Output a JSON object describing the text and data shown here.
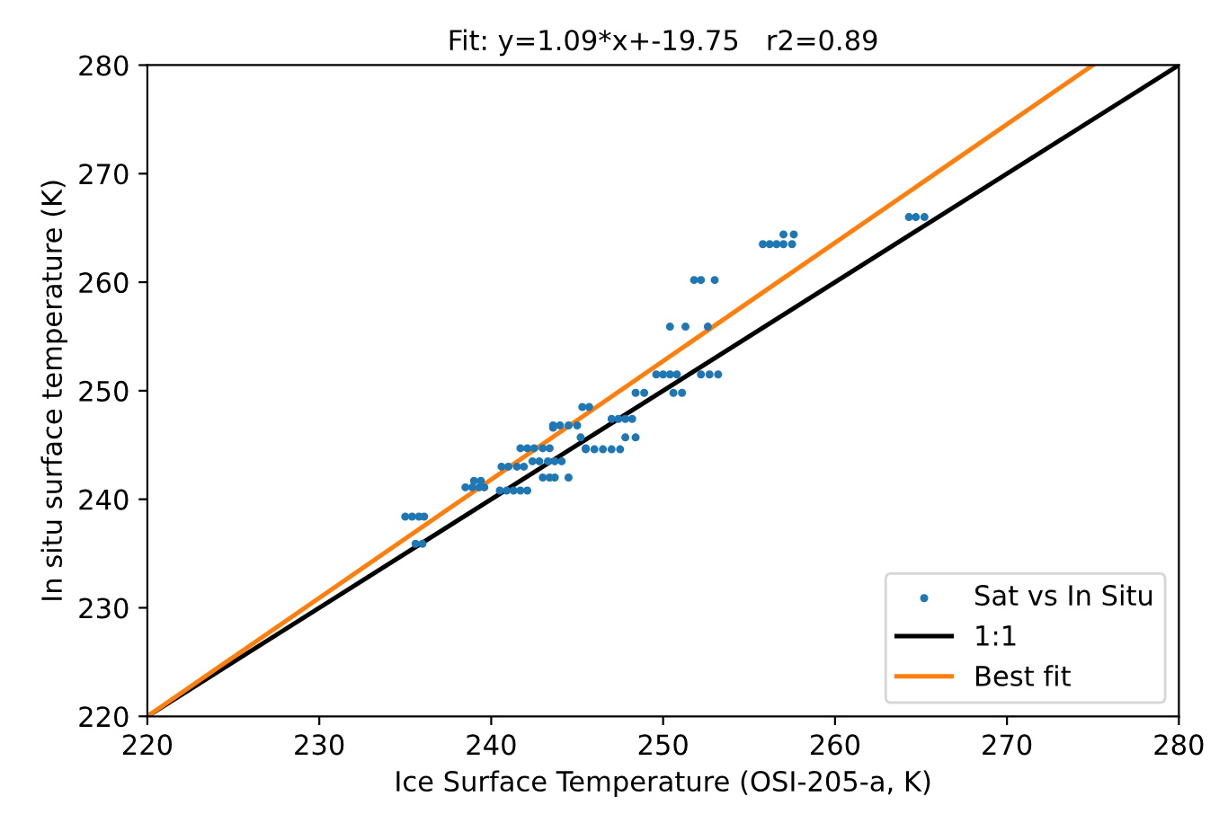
{
  "chart_data": {
    "type": "scatter",
    "title": "Fit: y=1.09*x+-19.75   r2=0.89",
    "xlabel": "Ice Surface Temperature (OSI-205-a, K)",
    "ylabel": "In situ surface temperature (K)",
    "xlim": [
      220,
      280
    ],
    "ylim": [
      220,
      280
    ],
    "xticks": [
      220,
      230,
      240,
      250,
      260,
      270,
      280
    ],
    "yticks": [
      220,
      230,
      240,
      250,
      260,
      270,
      280
    ],
    "grid": false,
    "legend": "bottom right",
    "series": [
      {
        "name": "Sat vs In Situ",
        "color": "#1f77b4",
        "marker": "circle",
        "x": [
          235.0,
          235.4,
          235.8,
          236.1,
          235.6,
          236.0,
          238.5,
          238.9,
          239.3,
          239.6,
          239.0,
          239.4,
          240.5,
          240.9,
          241.3,
          241.7,
          242.1,
          240.6,
          241.0,
          241.5,
          241.9,
          241.7,
          242.1,
          242.5,
          243.0,
          243.4,
          242.4,
          242.8,
          243.3,
          243.7,
          244.1,
          243.0,
          243.4,
          243.7,
          244.5,
          245.5,
          243.6,
          243.6,
          244.0,
          244.5,
          245.0,
          245.3,
          245.7,
          247.0,
          247.4,
          247.8,
          248.2,
          247.8,
          248.4,
          245.2,
          245.5,
          246.0,
          246.5,
          247.0,
          247.5,
          248.4,
          248.9,
          249.6,
          250.0,
          250.4,
          250.8,
          250.6,
          251.1,
          252.2,
          252.7,
          253.2,
          250.4,
          251.3,
          252.6,
          251.8,
          252.2,
          253.0,
          255.8,
          256.2,
          256.6,
          257.0,
          257.5,
          257.0,
          257.6,
          264.3,
          264.7,
          265.2
        ],
        "values": [
          238.4,
          238.4,
          238.4,
          238.4,
          235.9,
          235.9,
          241.1,
          241.1,
          241.1,
          241.1,
          241.7,
          241.7,
          240.8,
          240.8,
          240.8,
          240.8,
          240.8,
          243.0,
          243.0,
          243.0,
          243.0,
          244.7,
          244.7,
          244.7,
          244.7,
          244.7,
          243.5,
          243.5,
          243.5,
          243.5,
          243.5,
          242.0,
          242.0,
          242.0,
          242.0,
          244.7,
          246.6,
          246.8,
          246.8,
          246.8,
          246.8,
          248.5,
          248.5,
          247.4,
          247.4,
          247.4,
          247.4,
          245.7,
          245.7,
          245.7,
          244.6,
          244.6,
          244.6,
          244.6,
          244.6,
          249.8,
          249.8,
          251.5,
          251.5,
          251.5,
          251.5,
          249.8,
          249.8,
          251.5,
          251.5,
          251.5,
          255.9,
          255.9,
          255.9,
          260.2,
          260.2,
          260.2,
          263.5,
          263.5,
          263.5,
          263.5,
          263.5,
          264.4,
          264.4,
          266.0,
          266.0,
          266.0
        ]
      },
      {
        "name": "1:1",
        "type": "line",
        "color": "#000000",
        "line_style": "solid",
        "x": [
          220,
          280
        ],
        "values": [
          220,
          280
        ]
      },
      {
        "name": "Best fit",
        "type": "line",
        "color": "#ff7f0e",
        "line_style": "solid",
        "x": [
          220,
          275
        ],
        "values": [
          220,
          280
        ]
      }
    ]
  }
}
